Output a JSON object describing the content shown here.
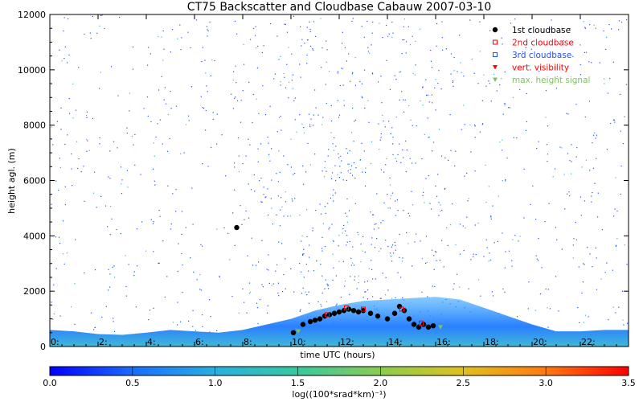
{
  "chart_data": {
    "type": "heatmap",
    "title": "CT75 Backscatter and Cloudbase Cabauw 2007-03-10",
    "xlabel": "time UTC (hours)",
    "ylabel": "height agl. (m)",
    "xlim": [
      0,
      24
    ],
    "ylim": [
      0,
      12000
    ],
    "x_ticks": [
      {
        "v": 0,
        "label": "0:"
      },
      {
        "v": 2,
        "label": "2:"
      },
      {
        "v": 4,
        "label": "4:"
      },
      {
        "v": 6,
        "label": "6:"
      },
      {
        "v": 8,
        "label": "8:"
      },
      {
        "v": 10,
        "label": "10:"
      },
      {
        "v": 12,
        "label": "12:"
      },
      {
        "v": 14,
        "label": "14:"
      },
      {
        "v": 16,
        "label": "16:"
      },
      {
        "v": 18,
        "label": "18:"
      },
      {
        "v": 20,
        "label": "20:"
      },
      {
        "v": 22,
        "label": "22:"
      }
    ],
    "y_ticks": [
      {
        "v": 0,
        "label": "0"
      },
      {
        "v": 2000,
        "label": "2000"
      },
      {
        "v": 4000,
        "label": "4000"
      },
      {
        "v": 6000,
        "label": "6000"
      },
      {
        "v": 8000,
        "label": "8000"
      },
      {
        "v": 10000,
        "label": "10000"
      },
      {
        "v": 12000,
        "label": "12000"
      }
    ],
    "colorbar": {
      "label": "log((100*srad*km)⁻¹)",
      "min": 0.0,
      "max": 3.5,
      "ticks": [
        "0.0",
        "0.5",
        "1.0",
        "1.5",
        "2.0",
        "2.5",
        "3.0",
        "3.5"
      ],
      "stops": [
        "#0000ff",
        "#1a6dff",
        "#28b0e0",
        "#38c8a0",
        "#8ccc50",
        "#e0c020",
        "#ff7a10",
        "#ff0000"
      ]
    },
    "boundary_layer_top_m": [
      [
        0,
        600
      ],
      [
        1,
        550
      ],
      [
        2,
        450
      ],
      [
        3,
        420
      ],
      [
        4,
        500
      ],
      [
        5,
        600
      ],
      [
        6,
        550
      ],
      [
        7,
        500
      ],
      [
        8,
        600
      ],
      [
        9,
        800
      ],
      [
        10,
        1000
      ],
      [
        11,
        1300
      ],
      [
        12,
        1500
      ],
      [
        13,
        1650
      ],
      [
        14,
        1700
      ],
      [
        15,
        1750
      ],
      [
        16,
        1800
      ],
      [
        17,
        1700
      ],
      [
        18,
        1400
      ],
      [
        19,
        1100
      ],
      [
        20,
        800
      ],
      [
        21,
        550
      ],
      [
        22,
        550
      ],
      [
        23,
        600
      ],
      [
        24,
        600
      ]
    ],
    "legend": [
      {
        "label": "1st cloudbase",
        "color": "#000000",
        "marker": "circle"
      },
      {
        "label": "2nd cloudbase",
        "color": "#ff0000",
        "marker": "square"
      },
      {
        "label": "3rd cloudbase",
        "color": "#2050ff",
        "marker": "square"
      },
      {
        "label": "vert. visibility",
        "color": "#ff0000",
        "marker": "triangle-down"
      },
      {
        "label": "max. height signal",
        "color": "#80c060",
        "marker": "triangle-down"
      }
    ],
    "series": [
      {
        "name": "1st cloudbase",
        "points": [
          [
            7.75,
            4300
          ],
          [
            10.1,
            500
          ],
          [
            10.5,
            800
          ],
          [
            10.8,
            900
          ],
          [
            11.0,
            950
          ],
          [
            11.2,
            1000
          ],
          [
            11.4,
            1100
          ],
          [
            11.6,
            1150
          ],
          [
            11.8,
            1200
          ],
          [
            12.0,
            1250
          ],
          [
            12.2,
            1300
          ],
          [
            12.4,
            1350
          ],
          [
            12.6,
            1300
          ],
          [
            12.8,
            1250
          ],
          [
            13.0,
            1300
          ],
          [
            13.3,
            1200
          ],
          [
            13.6,
            1100
          ],
          [
            14.0,
            1000
          ],
          [
            14.3,
            1200
          ],
          [
            14.5,
            1450
          ],
          [
            14.7,
            1300
          ],
          [
            14.9,
            1000
          ],
          [
            15.1,
            800
          ],
          [
            15.3,
            700
          ],
          [
            15.5,
            800
          ],
          [
            15.7,
            700
          ],
          [
            15.9,
            750
          ]
        ]
      },
      {
        "name": "2nd cloudbase",
        "points": [
          [
            11.5,
            1150
          ],
          [
            12.3,
            1400
          ],
          [
            13.0,
            1350
          ],
          [
            14.6,
            1350
          ],
          [
            15.4,
            850
          ]
        ]
      },
      {
        "name": "3rd cloudbase",
        "points": []
      },
      {
        "name": "vert. visibility",
        "points": []
      },
      {
        "name": "max. height signal",
        "points": [
          [
            10.3,
            550
          ],
          [
            16.2,
            700
          ]
        ]
      }
    ]
  }
}
